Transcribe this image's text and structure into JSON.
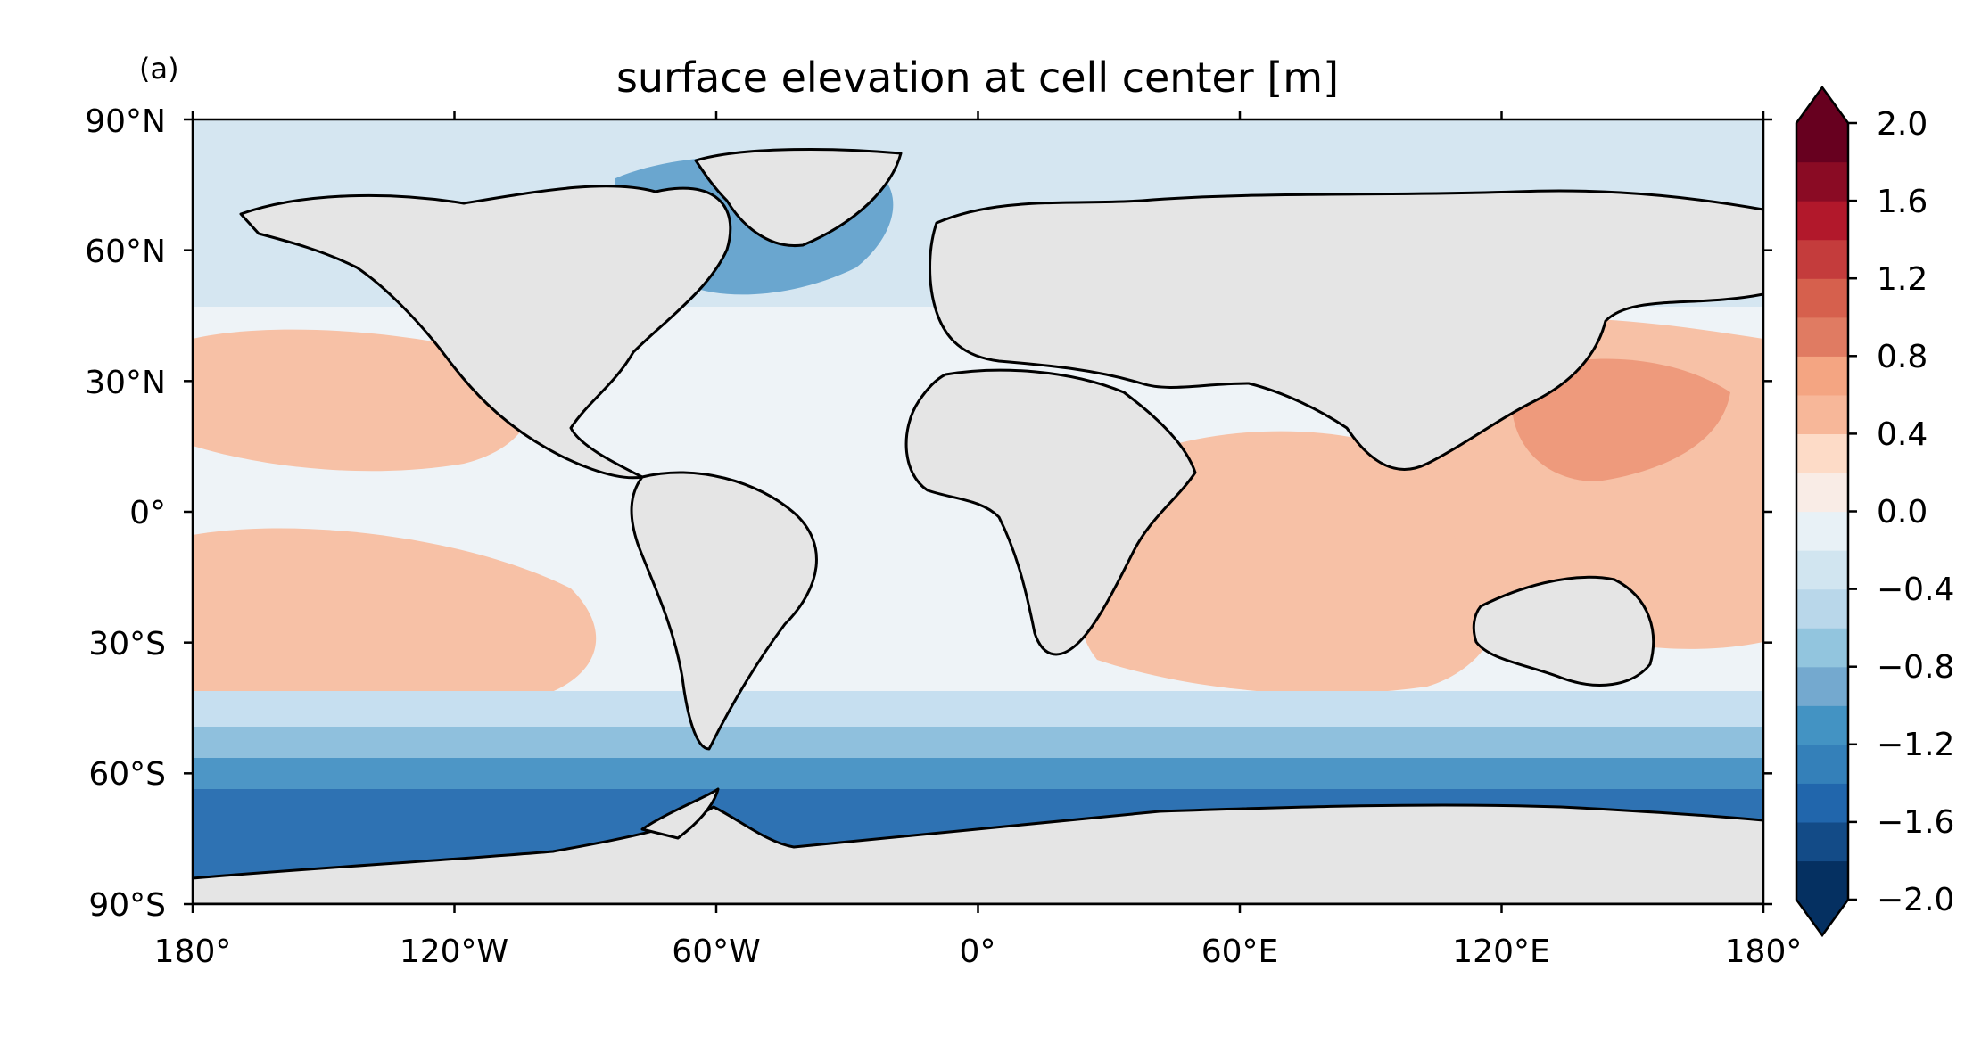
{
  "panel_label": "(a)",
  "title": "surface elevation at cell center [m]",
  "x_ticks": [
    "180°",
    "120°W",
    "60°W",
    "0°",
    "60°E",
    "120°E",
    "180°"
  ],
  "y_ticks": [
    "90°N",
    "60°N",
    "30°N",
    "0°",
    "30°S",
    "60°S",
    "90°S"
  ],
  "colorbar": {
    "ticks": [
      "2.0",
      "1.6",
      "1.2",
      "0.8",
      "0.4",
      "0.0",
      "−0.4",
      "−0.8",
      "−1.2",
      "−1.6",
      "−2.0"
    ],
    "colors": [
      "#053061",
      "#134b87",
      "#2166ac",
      "#3480b9",
      "#4393c3",
      "#74a9cf",
      "#92c5de",
      "#b9d7ea",
      "#d1e5f0",
      "#e8f1f6",
      "#f9ece6",
      "#fddbc7",
      "#f7b799",
      "#f4a582",
      "#e07b62",
      "#d6604d",
      "#c43c3c",
      "#b2182b",
      "#8a0b24",
      "#67001f"
    ]
  },
  "map_colors": {
    "land": "#e5e5e5",
    "coast": "#000000",
    "arctic": "#d5e6f1",
    "north_atlantic_low": "#6aa6cf",
    "southern_ocean_band_1": "#c6dff0",
    "southern_ocean_band_2": "#8fc0dd",
    "southern_ocean_band_3": "#4d96c6",
    "southern_ocean_band_4": "#2e72b3",
    "west_pacific_warm": "#ee9a7c",
    "subtropical_warm": "#f7c1a6",
    "near_zero": "#eef3f7"
  }
}
